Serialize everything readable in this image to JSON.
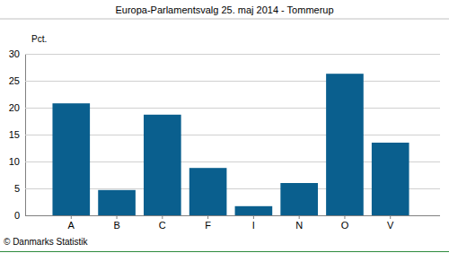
{
  "chart_data": {
    "type": "bar",
    "title": "Europa-Parlamentsvalg 25. maj 2014 - Tommerup",
    "y_label": "Pct.",
    "footer": "© Danmarks Statistik",
    "categories": [
      "A",
      "B",
      "C",
      "F",
      "I",
      "N",
      "O",
      "V"
    ],
    "values": [
      20.8,
      4.7,
      18.7,
      8.8,
      1.7,
      6.0,
      26.3,
      13.5
    ],
    "color": "#0a5f8e",
    "ylim": [
      0,
      30
    ],
    "yticks": [
      0,
      5,
      10,
      15,
      20,
      25,
      30
    ],
    "grid": true
  }
}
